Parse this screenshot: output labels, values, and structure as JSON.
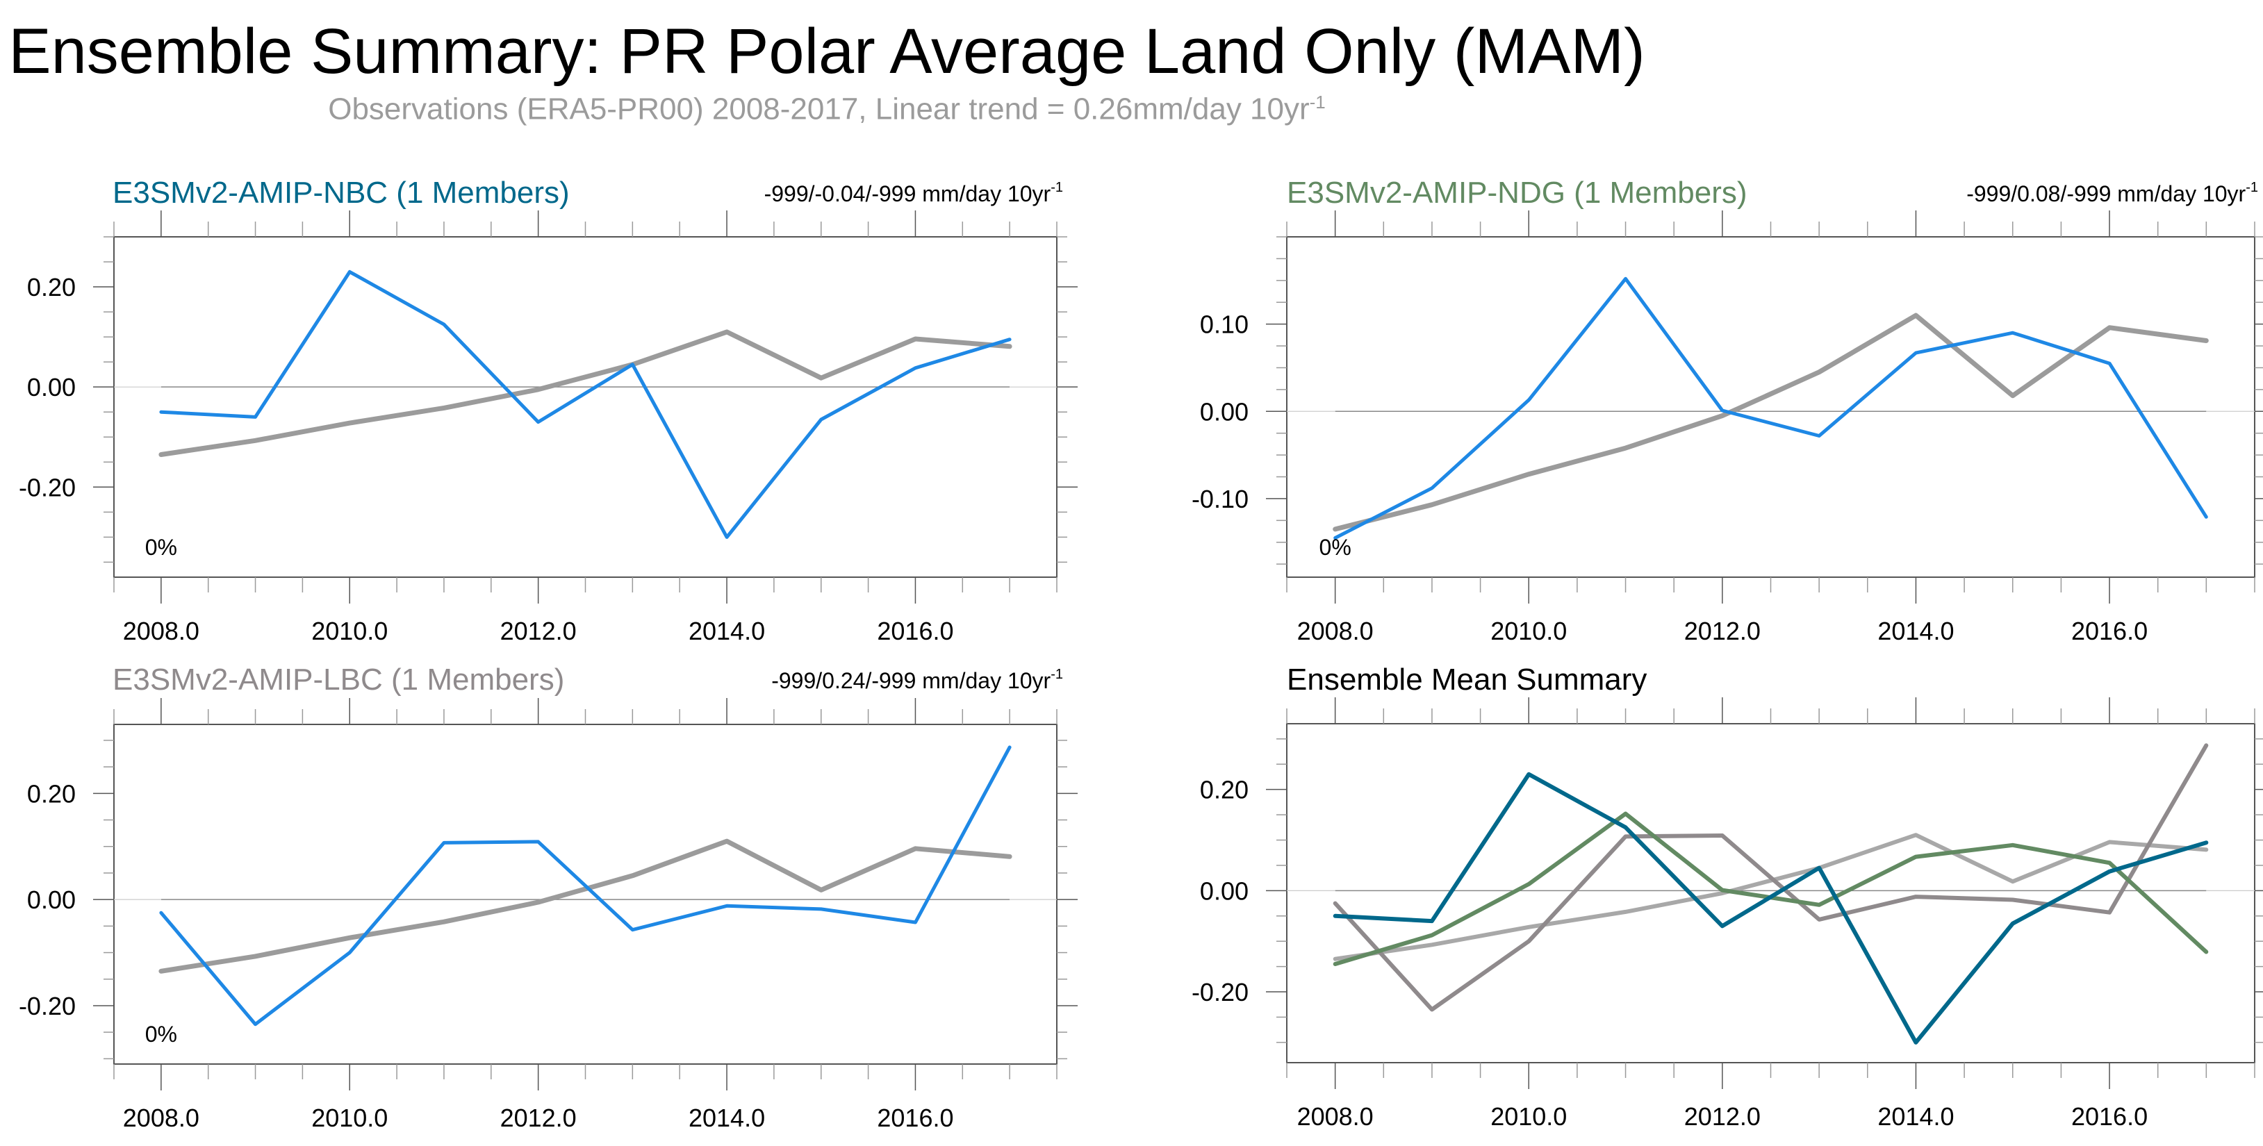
{
  "title": "Ensemble Summary: PR Polar Average Land Only (MAM)",
  "subtitle": {
    "text": "Observations (ERA5-PR00) 2008-2017, Linear trend = 0.26mm/day 10yr",
    "superscript": "-1"
  },
  "colors": {
    "observations": "#9b9b9b",
    "member_line": "#1e88e5",
    "NBC": "#00688b",
    "NDG": "#628a62",
    "LBC": "#8f8a8c",
    "obs_ensemble": "#a8a8a8"
  },
  "chart_data": [
    {
      "type": "line",
      "id": "nbc",
      "title": "E3SMv2-AMIP-NBC (1 Members)",
      "title_color": "#00688b",
      "trend_text": "-999/-0.04/-999 mm/day 10yr",
      "trend_superscript": "-1",
      "pct_label": "0%",
      "x": [
        2008,
        2009,
        2010,
        2011,
        2012,
        2013,
        2014,
        2015,
        2016,
        2017
      ],
      "xlim": [
        2007.5,
        2017.5
      ],
      "ylim": [
        -0.38,
        0.3
      ],
      "xticks": [
        2008,
        2010,
        2012,
        2014,
        2016
      ],
      "xtick_labels": [
        "2008.0",
        "2010.0",
        "2012.0",
        "2014.0",
        "2016.0"
      ],
      "show_xtick_labels": true,
      "yticks": [
        -0.2,
        0.0,
        0.2
      ],
      "ytick_labels": [
        "-0.20",
        "0.00",
        "0.20"
      ],
      "series": [
        {
          "name": "Observations",
          "color": "#9b9b9b",
          "values": [
            -0.135,
            -0.107,
            -0.072,
            -0.042,
            -0.005,
            0.045,
            0.11,
            0.018,
            0.096,
            0.081
          ]
        },
        {
          "name": "E3SMv2-AMIP-NBC",
          "color": "#1e88e5",
          "values": [
            -0.05,
            -0.06,
            0.23,
            0.125,
            -0.07,
            0.045,
            -0.3,
            -0.065,
            0.038,
            0.095
          ]
        }
      ]
    },
    {
      "type": "line",
      "id": "ndg",
      "title": "E3SMv2-AMIP-NDG (1 Members)",
      "title_color": "#628a62",
      "trend_text": "-999/0.08/-999 mm/day 10yr",
      "trend_superscript": "-1",
      "pct_label": "0%",
      "x": [
        2008,
        2009,
        2010,
        2011,
        2012,
        2013,
        2014,
        2015,
        2016,
        2017
      ],
      "xlim": [
        2007.5,
        2017.5
      ],
      "ylim": [
        -0.19,
        0.2
      ],
      "xticks": [
        2008,
        2010,
        2012,
        2014,
        2016
      ],
      "xtick_labels": [
        "2008.0",
        "2010.0",
        "2012.0",
        "2014.0",
        "2016.0"
      ],
      "show_xtick_labels": true,
      "yticks": [
        -0.1,
        0.0,
        0.1
      ],
      "ytick_labels": [
        "-0.10",
        "0.00",
        "0.10"
      ],
      "series": [
        {
          "name": "Observations",
          "color": "#9b9b9b",
          "values": [
            -0.135,
            -0.107,
            -0.072,
            -0.042,
            -0.005,
            0.045,
            0.11,
            0.018,
            0.096,
            0.081
          ]
        },
        {
          "name": "E3SMv2-AMIP-NDG",
          "color": "#1e88e5",
          "values": [
            -0.145,
            -0.088,
            0.013,
            0.152,
            0.001,
            -0.028,
            0.067,
            0.09,
            0.055,
            -0.121
          ]
        }
      ]
    },
    {
      "type": "line",
      "id": "lbc",
      "title": "E3SMv2-AMIP-LBC (1 Members)",
      "title_color": "#8f8a8c",
      "trend_text": "-999/0.24/-999 mm/day 10yr",
      "trend_superscript": "-1",
      "pct_label": "0%",
      "x": [
        2008,
        2009,
        2010,
        2011,
        2012,
        2013,
        2014,
        2015,
        2016,
        2017
      ],
      "xlim": [
        2007.5,
        2017.5
      ],
      "ylim": [
        -0.31,
        0.33
      ],
      "xticks": [
        2008,
        2010,
        2012,
        2014,
        2016
      ],
      "xtick_labels": [
        "2008.0",
        "2010.0",
        "2012.0",
        "2014.0",
        "2016.0"
      ],
      "show_xtick_labels": true,
      "yticks": [
        -0.2,
        0.0,
        0.2
      ],
      "ytick_labels": [
        "-0.20",
        "0.00",
        "0.20"
      ],
      "series": [
        {
          "name": "Observations",
          "color": "#9b9b9b",
          "values": [
            -0.135,
            -0.107,
            -0.072,
            -0.042,
            -0.005,
            0.045,
            0.11,
            0.018,
            0.096,
            0.081
          ]
        },
        {
          "name": "E3SMv2-AMIP-LBC",
          "color": "#1e88e5",
          "values": [
            -0.025,
            -0.235,
            -0.1,
            0.107,
            0.109,
            -0.057,
            -0.012,
            -0.018,
            -0.043,
            0.287
          ]
        }
      ]
    },
    {
      "type": "line",
      "id": "ensemble",
      "title": "Ensemble Mean Summary",
      "title_color": "#000000",
      "trend_text": "",
      "trend_superscript": "",
      "pct_label": "",
      "x": [
        2008,
        2009,
        2010,
        2011,
        2012,
        2013,
        2014,
        2015,
        2016,
        2017
      ],
      "xlim": [
        2007.5,
        2017.5
      ],
      "ylim": [
        -0.34,
        0.33
      ],
      "xticks": [
        2008,
        2010,
        2012,
        2014,
        2016
      ],
      "xtick_labels": [
        "2008.0",
        "2010.0",
        "2012.0",
        "2014.0",
        "2016.0"
      ],
      "show_xtick_labels": true,
      "yticks": [
        -0.2,
        0.0,
        0.2
      ],
      "ytick_labels": [
        "-0.20",
        "0.00",
        "0.20"
      ],
      "series": [
        {
          "name": "Observations",
          "color": "#a8a8a8",
          "values": [
            -0.135,
            -0.107,
            -0.072,
            -0.042,
            -0.005,
            0.045,
            0.11,
            0.018,
            0.096,
            0.081
          ]
        },
        {
          "name": "E3SMv2-AMIP-LBC",
          "color": "#8f8a8c",
          "values": [
            -0.025,
            -0.235,
            -0.1,
            0.107,
            0.109,
            -0.057,
            -0.012,
            -0.018,
            -0.043,
            0.287
          ]
        },
        {
          "name": "E3SMv2-AMIP-NDG",
          "color": "#628a62",
          "values": [
            -0.145,
            -0.088,
            0.013,
            0.152,
            0.001,
            -0.028,
            0.067,
            0.09,
            0.055,
            -0.121
          ]
        },
        {
          "name": "E3SMv2-AMIP-NBC",
          "color": "#00688b",
          "values": [
            -0.05,
            -0.06,
            0.23,
            0.125,
            -0.07,
            0.045,
            -0.3,
            -0.065,
            0.038,
            0.095
          ]
        }
      ]
    }
  ]
}
